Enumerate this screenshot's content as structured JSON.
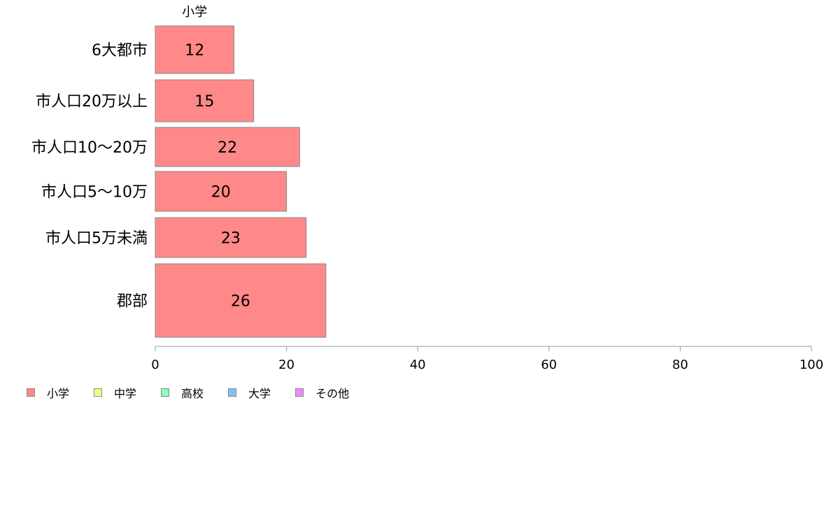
{
  "chart_data": {
    "type": "bar",
    "orientation": "horizontal",
    "stacked": true,
    "categories": [
      "6大都市",
      "市人口20万以上",
      "市人口10〜20万",
      "市人口5〜10万",
      "市人口5万未満",
      "郡部"
    ],
    "series": [
      {
        "name": "小学",
        "values": [
          12,
          15,
          22,
          20,
          23,
          26
        ],
        "color": "#ff8888"
      },
      {
        "name": "中学",
        "values": [
          0,
          0,
          0,
          0,
          0,
          0
        ],
        "color": "#eeff88"
      },
      {
        "name": "高校",
        "values": [
          0,
          0,
          0,
          0,
          0,
          0
        ],
        "color": "#88ffbb"
      },
      {
        "name": "大学",
        "values": [
          0,
          0,
          0,
          0,
          0,
          0
        ],
        "color": "#88bbff"
      },
      {
        "name": "その他",
        "values": [
          0,
          0,
          0,
          0,
          0,
          0
        ],
        "color": "#ee88ff"
      }
    ],
    "top_series_label": "小学",
    "xlim": [
      0,
      100
    ],
    "xticks": [
      0,
      20,
      40,
      60,
      80,
      100
    ],
    "legend_position": "bottom-left",
    "grid": false
  }
}
